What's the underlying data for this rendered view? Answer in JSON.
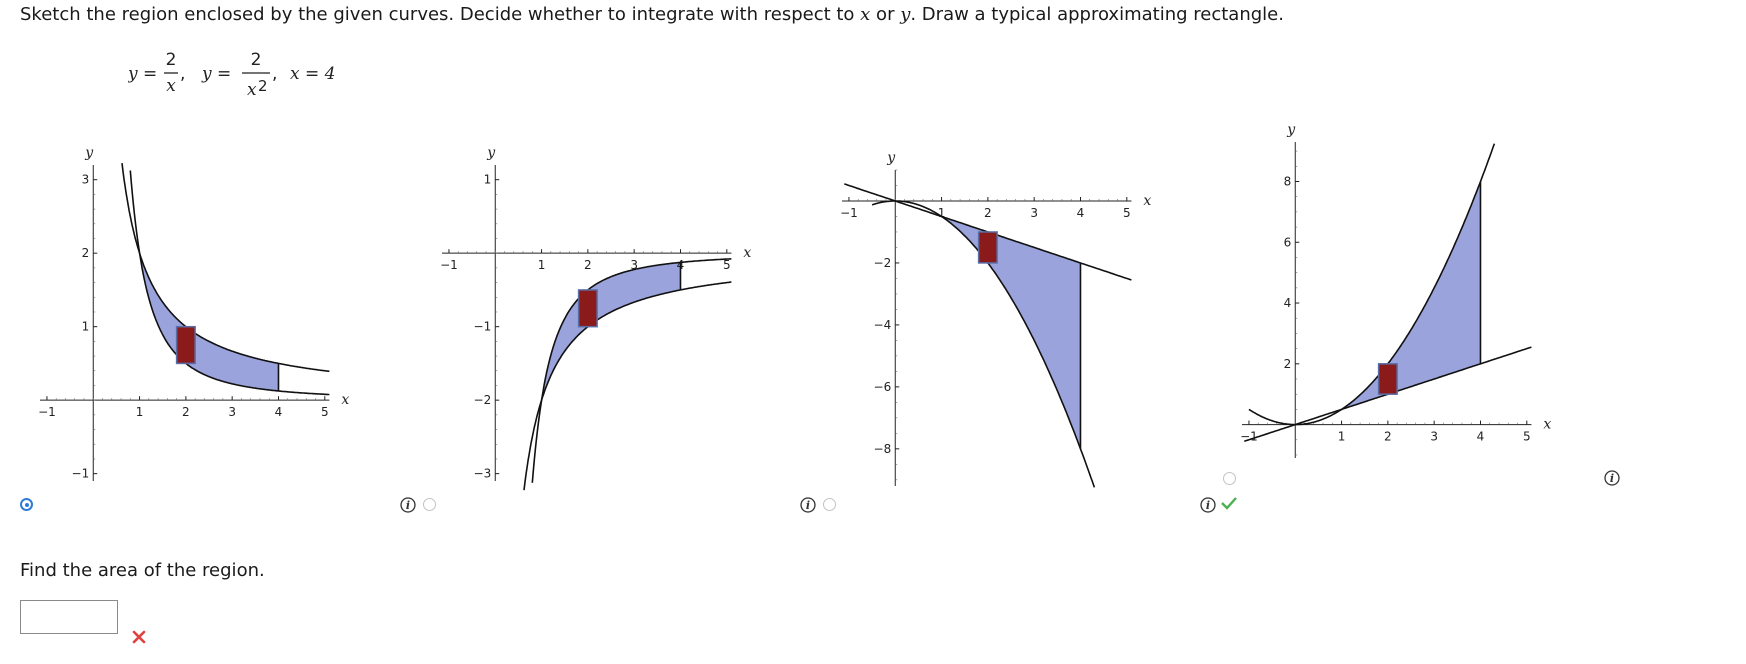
{
  "instruction": {
    "prefix": "Sketch the region enclosed by the given curves. Decide whether to integrate with respect to ",
    "var_x": "x",
    "middle": " or ",
    "var_y": "y",
    "suffix": ". Draw a typical approximating rectangle."
  },
  "equation": {
    "lhs1": "y =",
    "num1": "2",
    "den1": "x",
    "sep1": ",",
    "lhs2": "y =",
    "num2": "2",
    "den2_base": "x",
    "den2_exp": "2",
    "sep2": ",",
    "third": "x = 4"
  },
  "colors": {
    "fill": "#9aa3db",
    "rect_fill": "#8b1b1b",
    "rect_stroke": "#5a6fa8",
    "radio_selected": "#2f7bd9",
    "check": "#4caf50",
    "xmark": "#e0403f"
  },
  "graphs": [
    {
      "id": "graph-a",
      "selected": true,
      "x_axis_label": "x",
      "y_axis_label": "y",
      "x_ticks": [
        {
          "v": -1,
          "t": "−1"
        },
        {
          "v": 1,
          "t": "1"
        },
        {
          "v": 2,
          "t": "2"
        },
        {
          "v": 3,
          "t": "3"
        },
        {
          "v": 4,
          "t": "4"
        },
        {
          "v": 5,
          "t": "5"
        }
      ],
      "y_ticks": [
        {
          "v": -1,
          "t": "−1"
        },
        {
          "v": 1,
          "t": "1"
        },
        {
          "v": 2,
          "t": "2"
        },
        {
          "v": 3,
          "t": "3"
        }
      ],
      "xlim": [
        -1.15,
        5.35
      ],
      "ylim": [
        -1.1,
        3.2
      ],
      "rect_x": [
        1.8,
        2.2
      ]
    },
    {
      "id": "graph-b",
      "selected": false,
      "x_axis_label": "x",
      "y_axis_label": "y",
      "x_ticks": [
        {
          "v": -1,
          "t": "−1"
        },
        {
          "v": 1,
          "t": "1"
        },
        {
          "v": 2,
          "t": "2"
        },
        {
          "v": 3,
          "t": "3"
        },
        {
          "v": 4,
          "t": "4"
        },
        {
          "v": 5,
          "t": "5"
        }
      ],
      "y_ticks": [
        {
          "v": -3,
          "t": "−3"
        },
        {
          "v": -2,
          "t": "−2"
        },
        {
          "v": -1,
          "t": "−1"
        },
        {
          "v": 1,
          "t": "1"
        }
      ],
      "xlim": [
        -1.15,
        5.35
      ],
      "ylim": [
        -3.1,
        1.2
      ],
      "rect_x": [
        1.8,
        2.2
      ]
    },
    {
      "id": "graph-c",
      "selected": false,
      "x_axis_label": "x",
      "y_axis_label": "y",
      "x_ticks": [
        {
          "v": -1,
          "t": "−1"
        },
        {
          "v": 1,
          "t": "1"
        },
        {
          "v": 2,
          "t": "2"
        },
        {
          "v": 3,
          "t": "3"
        },
        {
          "v": 4,
          "t": "4"
        },
        {
          "v": 5,
          "t": "5"
        }
      ],
      "y_ticks": [
        {
          "v": -8,
          "t": "−8"
        },
        {
          "v": -6,
          "t": "−6"
        },
        {
          "v": -4,
          "t": "−4"
        },
        {
          "v": -2,
          "t": "−2"
        }
      ],
      "xlim": [
        -1.15,
        5.35
      ],
      "ylim": [
        -9.2,
        1.0
      ],
      "rect_x": [
        1.8,
        2.2
      ]
    },
    {
      "id": "graph-d",
      "selected": false,
      "x_axis_label": "x",
      "y_axis_label": "y",
      "x_ticks": [
        {
          "v": -1,
          "t": "−1"
        },
        {
          "v": 1,
          "t": "1"
        },
        {
          "v": 2,
          "t": "2"
        },
        {
          "v": 3,
          "t": "3"
        },
        {
          "v": 4,
          "t": "4"
        },
        {
          "v": 5,
          "t": "5"
        }
      ],
      "y_ticks": [
        {
          "v": 2,
          "t": "2"
        },
        {
          "v": 4,
          "t": "4"
        },
        {
          "v": 6,
          "t": "6"
        },
        {
          "v": 8,
          "t": "8"
        }
      ],
      "xlim": [
        -1.15,
        5.35
      ],
      "ylim": [
        -1.1,
        9.3
      ],
      "rect_x": [
        1.8,
        2.2
      ]
    }
  ],
  "question": "Find the area of the region.",
  "answer": {
    "value": ""
  }
}
